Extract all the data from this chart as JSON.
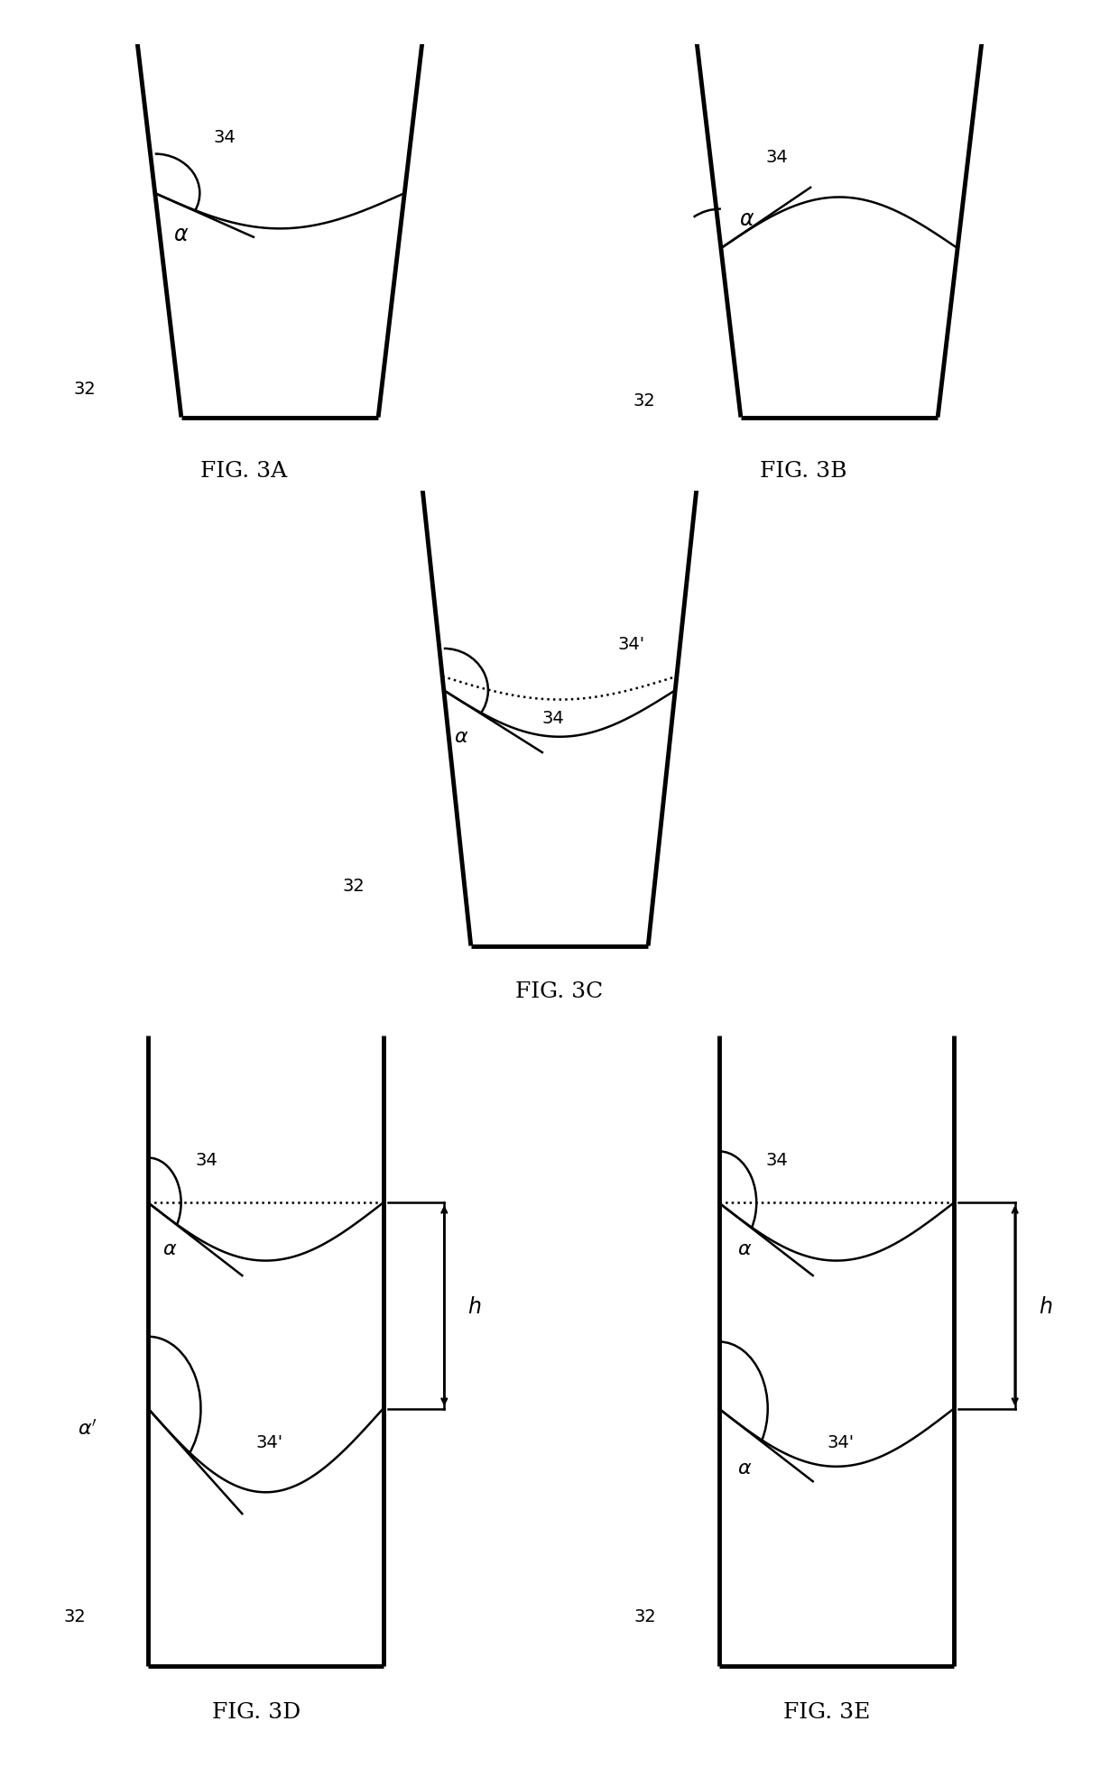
{
  "background_color": "#ffffff",
  "line_color": "#000000",
  "lw_wall": 3.5,
  "lw_curve": 1.8,
  "fs_num": 14,
  "fs_fig": 18,
  "fig_labels": [
    "FIG. 3A",
    "FIG. 3B",
    "FIG. 3C",
    "FIG. 3D",
    "FIG. 3E"
  ]
}
